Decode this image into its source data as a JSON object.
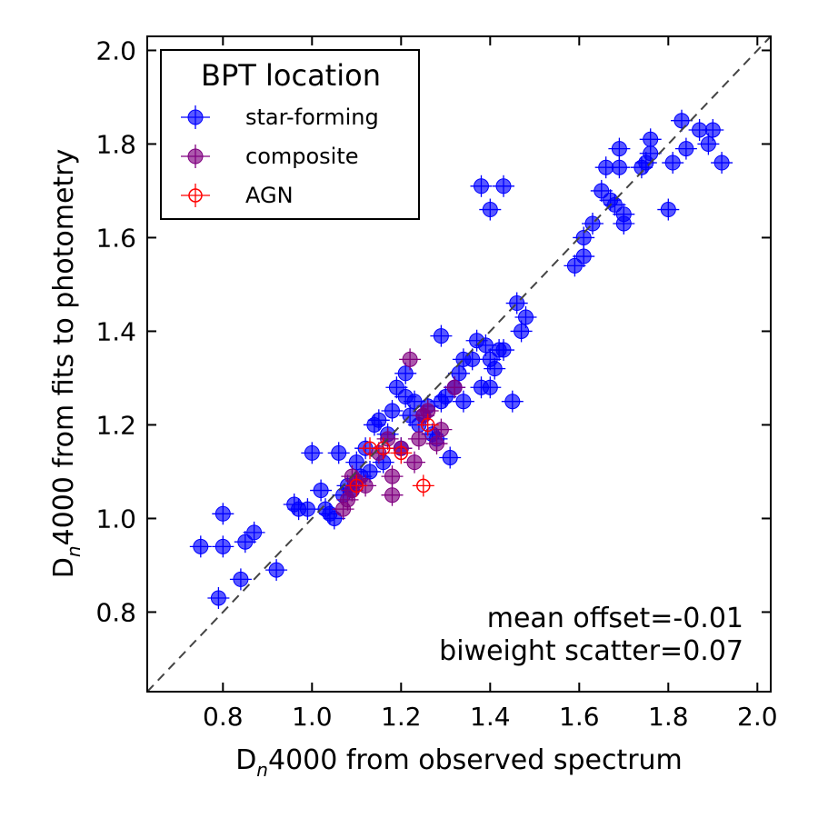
{
  "chart_data": {
    "type": "scatter",
    "xlabel_main": "D",
    "xlabel_sub": "n",
    "xlabel_rest": "4000 from observed spectrum",
    "ylabel_main": "D",
    "ylabel_sub": "n",
    "ylabel_rest": "4000 from fits to photometry",
    "xlim": [
      0.63,
      2.03
    ],
    "ylim": [
      0.63,
      2.03
    ],
    "xticks": [
      "0.8",
      "1.0",
      "1.2",
      "1.4",
      "1.6",
      "1.8",
      "2.0"
    ],
    "yticks": [
      "0.8",
      "1.0",
      "1.2",
      "1.4",
      "1.6",
      "1.8",
      "2.0"
    ],
    "one_to_one_line": true,
    "grid": false,
    "legend": {
      "title": "BPT location",
      "position": "top-left"
    },
    "annotations": [
      "mean offset=-0.01",
      "biweight scatter=0.07"
    ],
    "colors": {
      "star_forming": "#0000ff",
      "composite": "#800080",
      "agn": "#ff0000"
    },
    "series": [
      {
        "name": "star-forming",
        "marker": "filled-circle",
        "points": [
          [
            0.75,
            0.94
          ],
          [
            0.79,
            0.83
          ],
          [
            0.8,
            1.01
          ],
          [
            0.8,
            0.94
          ],
          [
            0.84,
            0.87
          ],
          [
            0.85,
            0.95
          ],
          [
            0.87,
            0.97
          ],
          [
            0.92,
            0.89
          ],
          [
            0.96,
            1.03
          ],
          [
            0.97,
            1.02
          ],
          [
            0.99,
            1.02
          ],
          [
            1.0,
            1.14
          ],
          [
            1.02,
            1.06
          ],
          [
            1.03,
            1.02
          ],
          [
            1.04,
            1.01
          ],
          [
            1.05,
            1.0
          ],
          [
            1.06,
            1.14
          ],
          [
            1.07,
            1.05
          ],
          [
            1.08,
            1.07
          ],
          [
            1.09,
            1.06
          ],
          [
            1.1,
            1.12
          ],
          [
            1.11,
            1.09
          ],
          [
            1.12,
            1.15
          ],
          [
            1.13,
            1.1
          ],
          [
            1.14,
            1.2
          ],
          [
            1.15,
            1.21
          ],
          [
            1.16,
            1.12
          ],
          [
            1.17,
            1.18
          ],
          [
            1.18,
            1.23
          ],
          [
            1.19,
            1.28
          ],
          [
            1.2,
            1.15
          ],
          [
            1.21,
            1.26
          ],
          [
            1.21,
            1.31
          ],
          [
            1.22,
            1.22
          ],
          [
            1.23,
            1.25
          ],
          [
            1.24,
            1.2
          ],
          [
            1.25,
            1.22
          ],
          [
            1.26,
            1.24
          ],
          [
            1.27,
            1.18
          ],
          [
            1.28,
            1.17
          ],
          [
            1.29,
            1.25
          ],
          [
            1.29,
            1.39
          ],
          [
            1.3,
            1.26
          ],
          [
            1.31,
            1.13
          ],
          [
            1.32,
            1.28
          ],
          [
            1.33,
            1.31
          ],
          [
            1.34,
            1.25
          ],
          [
            1.34,
            1.34
          ],
          [
            1.36,
            1.34
          ],
          [
            1.37,
            1.38
          ],
          [
            1.38,
            1.28
          ],
          [
            1.39,
            1.37
          ],
          [
            1.4,
            1.28
          ],
          [
            1.4,
            1.34
          ],
          [
            1.41,
            1.32
          ],
          [
            1.42,
            1.36
          ],
          [
            1.43,
            1.36
          ],
          [
            1.45,
            1.25
          ],
          [
            1.46,
            1.46
          ],
          [
            1.47,
            1.4
          ],
          [
            1.48,
            1.43
          ],
          [
            1.38,
            1.71
          ],
          [
            1.4,
            1.66
          ],
          [
            1.43,
            1.71
          ],
          [
            1.59,
            1.54
          ],
          [
            1.61,
            1.6
          ],
          [
            1.61,
            1.56
          ],
          [
            1.63,
            1.63
          ],
          [
            1.65,
            1.7
          ],
          [
            1.66,
            1.75
          ],
          [
            1.67,
            1.68
          ],
          [
            1.68,
            1.67
          ],
          [
            1.69,
            1.75
          ],
          [
            1.69,
            1.79
          ],
          [
            1.7,
            1.65
          ],
          [
            1.7,
            1.63
          ],
          [
            1.74,
            1.75
          ],
          [
            1.75,
            1.76
          ],
          [
            1.76,
            1.78
          ],
          [
            1.76,
            1.81
          ],
          [
            1.8,
            1.66
          ],
          [
            1.81,
            1.76
          ],
          [
            1.83,
            1.85
          ],
          [
            1.84,
            1.79
          ],
          [
            1.87,
            1.83
          ],
          [
            1.89,
            1.8
          ],
          [
            1.9,
            1.83
          ],
          [
            1.92,
            1.76
          ]
        ]
      },
      {
        "name": "composite",
        "marker": "filled-circle",
        "points": [
          [
            1.07,
            1.02
          ],
          [
            1.08,
            1.04
          ],
          [
            1.09,
            1.06
          ],
          [
            1.09,
            1.09
          ],
          [
            1.1,
            1.08
          ],
          [
            1.12,
            1.07
          ],
          [
            1.15,
            1.14
          ],
          [
            1.17,
            1.17
          ],
          [
            1.18,
            1.05
          ],
          [
            1.18,
            1.09
          ],
          [
            1.2,
            1.15
          ],
          [
            1.22,
            1.34
          ],
          [
            1.23,
            1.12
          ],
          [
            1.24,
            1.17
          ],
          [
            1.25,
            1.22
          ],
          [
            1.26,
            1.23
          ],
          [
            1.28,
            1.16
          ],
          [
            1.29,
            1.19
          ],
          [
            1.32,
            1.28
          ]
        ]
      },
      {
        "name": "AGN",
        "marker": "open-circle",
        "points": [
          [
            1.1,
            1.07
          ],
          [
            1.13,
            1.15
          ],
          [
            1.16,
            1.15
          ],
          [
            1.2,
            1.14
          ],
          [
            1.25,
            1.07
          ],
          [
            1.26,
            1.2
          ]
        ]
      }
    ]
  }
}
